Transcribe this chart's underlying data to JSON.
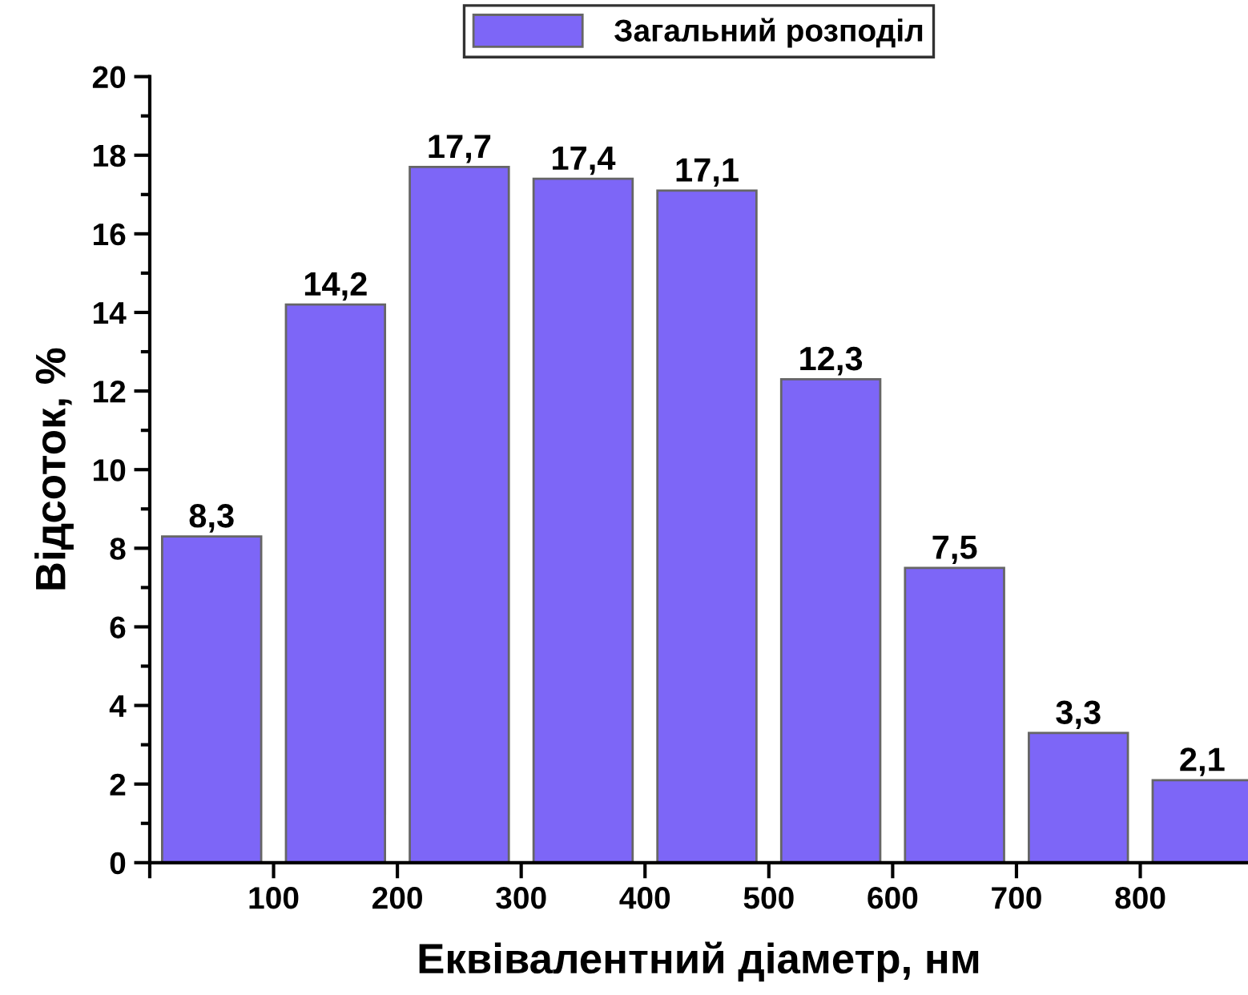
{
  "chart_data": {
    "type": "histogram",
    "xlabel": "Еквівалентний діаметр, нм",
    "ylabel": "Відсоток, %",
    "bins": [
      0,
      100,
      200,
      300,
      400,
      500,
      600,
      700,
      800,
      900
    ],
    "series": [
      {
        "name": "Загальний розподіл",
        "color": "#7d66f7",
        "values": [
          8.3,
          14.2,
          17.7,
          17.4,
          17.1,
          12.3,
          7.5,
          3.3,
          2.1
        ],
        "value_labels": [
          "8,3",
          "14,2",
          "17,7",
          "17,4",
          "17,1",
          "12,3",
          "7,5",
          "3,3",
          "2,1"
        ]
      }
    ],
    "xlim": [
      0,
      887
    ],
    "xticks": [
      {
        "value": 0,
        "label": null
      },
      100,
      200,
      300,
      400,
      500,
      600,
      700,
      800
    ],
    "ylim": [
      0,
      20
    ],
    "yticks": [
      0,
      2,
      4,
      6,
      8,
      10,
      12,
      14,
      16,
      18,
      20
    ],
    "legend": "top",
    "grid": false
  }
}
